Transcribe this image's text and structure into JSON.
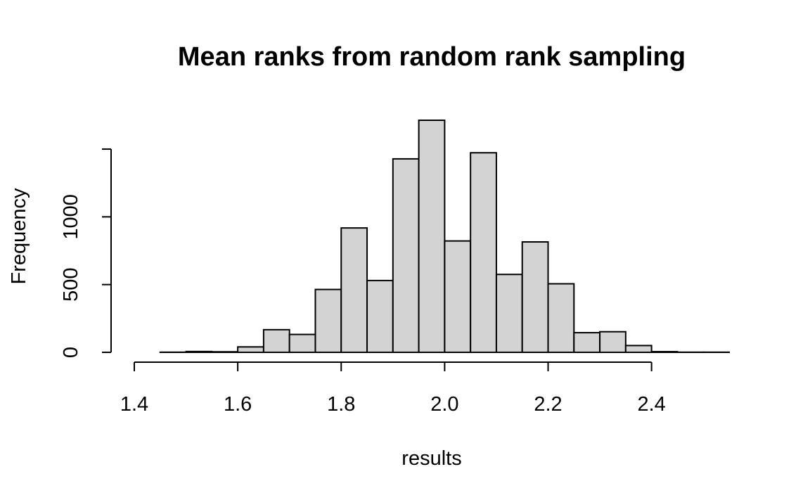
{
  "chart_data": {
    "type": "bar",
    "title": "Mean ranks from random rank sampling",
    "xlabel": "results",
    "ylabel": "Frequency",
    "bar_color": "#d3d3d3",
    "bar_border_color": "#000000",
    "bin_edges": [
      1.4,
      1.45,
      1.5,
      1.55,
      1.6,
      1.65,
      1.7,
      1.75,
      1.8,
      1.85,
      1.9,
      1.95,
      2.0,
      2.05,
      2.1,
      2.15,
      2.2,
      2.25,
      2.3,
      2.35,
      2.4,
      2.45,
      2.5,
      2.55
    ],
    "values": [
      0,
      1,
      6,
      4,
      40,
      167,
      132,
      464,
      918,
      530,
      1428,
      1713,
      822,
      1473,
      575,
      815,
      506,
      145,
      152,
      50,
      5,
      1,
      1
    ],
    "xlim": [
      1.4,
      2.55
    ],
    "ylim": [
      0,
      1713
    ],
    "x_ticks": [
      1.4,
      1.6,
      1.8,
      2.0,
      2.2,
      2.4
    ],
    "x_tick_labels": [
      "1.4",
      "1.6",
      "1.8",
      "2.0",
      "2.2",
      "2.4"
    ],
    "y_ticks": [
      0,
      500,
      1000,
      1500
    ],
    "y_tick_labels": [
      "0",
      "500",
      "1000",
      ""
    ],
    "grid": false,
    "legend": "none"
  }
}
